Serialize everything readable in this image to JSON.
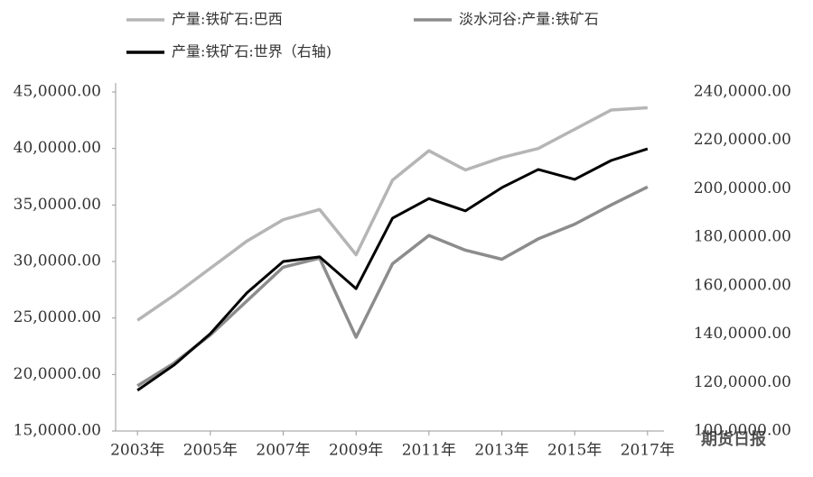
{
  "chart_data": {
    "type": "line",
    "x": [
      2003,
      2004,
      2005,
      2006,
      2007,
      2008,
      2009,
      2010,
      2011,
      2012,
      2013,
      2014,
      2015,
      2016,
      2017
    ],
    "xlim": [
      2002.4,
      2017.45
    ],
    "xticks": [
      {
        "value": 2003,
        "label": "2003年"
      },
      {
        "value": 2005,
        "label": "2005年"
      },
      {
        "value": 2007,
        "label": "2007年"
      },
      {
        "value": 2009,
        "label": "2009年"
      },
      {
        "value": 2011,
        "label": "2011年"
      },
      {
        "value": 2013,
        "label": "2013年"
      },
      {
        "value": 2015,
        "label": "2015年"
      },
      {
        "value": 2017,
        "label": "2017年"
      }
    ],
    "ylim": [
      150000,
      450000
    ],
    "yticks": [
      {
        "value": 150000,
        "label": "15,0000.00"
      },
      {
        "value": 200000,
        "label": "20,0000.00"
      },
      {
        "value": 250000,
        "label": "25,0000.00"
      },
      {
        "value": 300000,
        "label": "30,0000.00"
      },
      {
        "value": 350000,
        "label": "35,0000.00"
      },
      {
        "value": 400000,
        "label": "40,0000.00"
      },
      {
        "value": 450000,
        "label": "45,0000.00"
      }
    ],
    "y2lim": [
      1000000,
      2400000
    ],
    "y2ticks": [
      {
        "value": 1000000,
        "label": "100,0000.00"
      },
      {
        "value": 1200000,
        "label": "120,0000.00"
      },
      {
        "value": 1400000,
        "label": "140,0000.00"
      },
      {
        "value": 1600000,
        "label": "160,0000.00"
      },
      {
        "value": 1800000,
        "label": "180,0000.00"
      },
      {
        "value": 2000000,
        "label": "200,0000.00"
      },
      {
        "value": 2200000,
        "label": "220,0000.00"
      },
      {
        "value": 2400000,
        "label": "240,0000.00"
      }
    ],
    "grid": false,
    "series": [
      {
        "name": "产量:铁矿石:巴西",
        "color": "#b5b5b5",
        "values": [
          248000,
          270000,
          294000,
          318000,
          337000,
          346000,
          306000,
          372000,
          398000,
          381000,
          392000,
          400000,
          417000,
          434000,
          436000
        ]
      },
      {
        "name": "淡水河谷:产量:铁矿石",
        "color": "#8c8c8c",
        "values": [
          190000,
          210000,
          235000,
          265000,
          295000,
          303000,
          233000,
          298000,
          323000,
          310000,
          302000,
          320000,
          333000,
          350000,
          366000
        ]
      },
      {
        "name": "产量:铁矿石:世界（右轴)",
        "color": "#000000",
        "axis": "y2",
        "values": [
          1168000,
          1272000,
          1402000,
          1570000,
          1700000,
          1719000,
          1588000,
          1879000,
          1960000,
          1909000,
          2005000,
          2080000,
          2039000,
          2117000,
          2165000
        ]
      }
    ],
    "watermark": "期货日报"
  }
}
